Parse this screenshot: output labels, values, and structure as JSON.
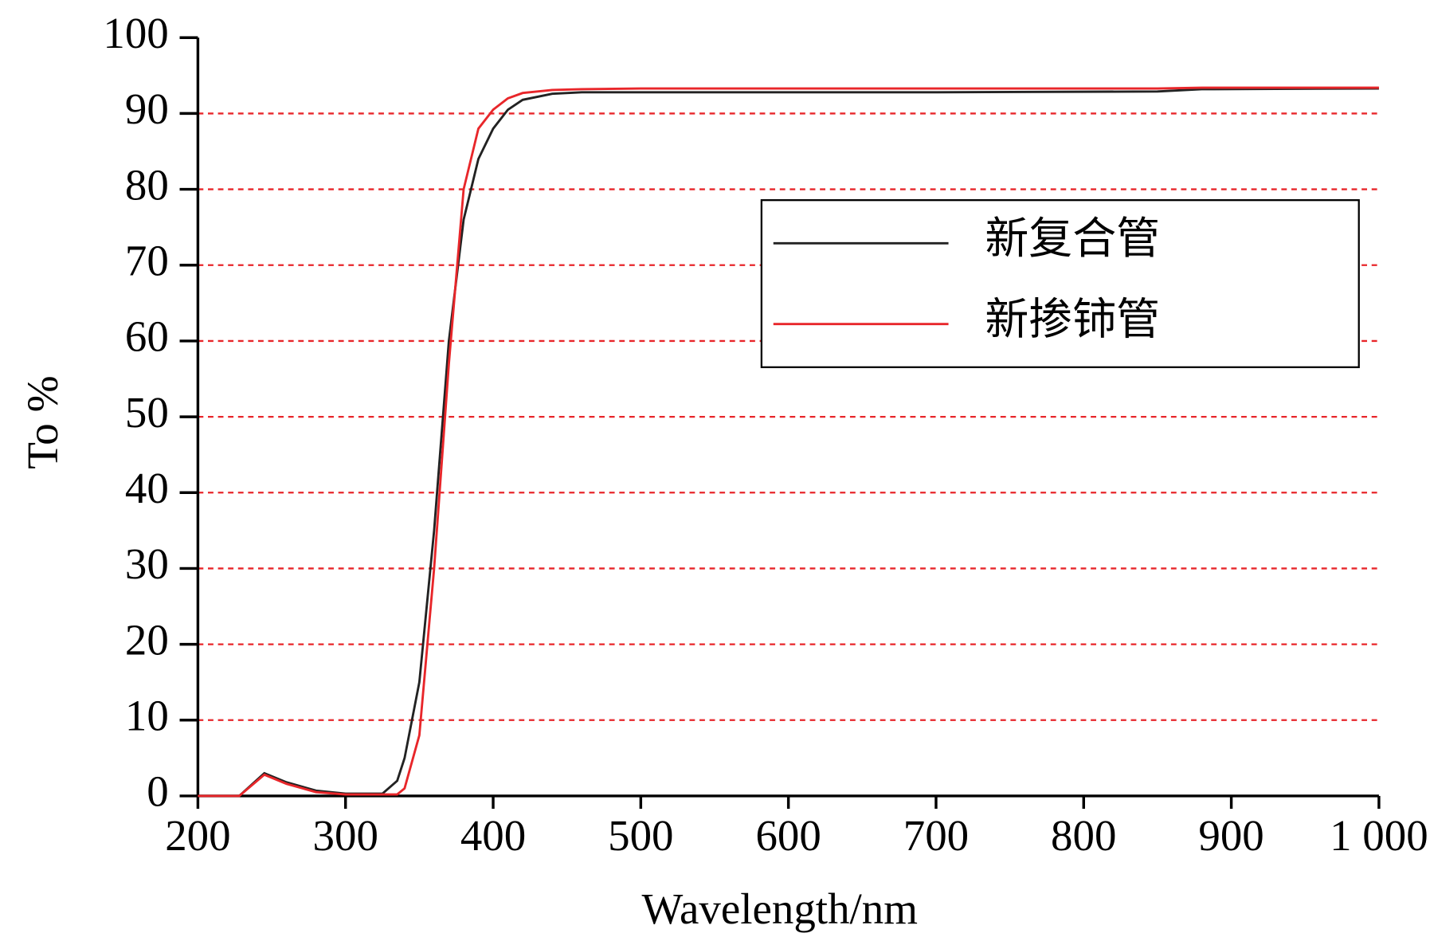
{
  "chart_data": {
    "type": "line",
    "x_label": "Wavelength/nm",
    "y_label": "To %",
    "x": [
      200,
      228,
      245,
      260,
      280,
      300,
      325,
      335,
      340,
      350,
      360,
      370,
      380,
      390,
      400,
      410,
      420,
      440,
      460,
      500,
      700,
      850,
      880,
      1000
    ],
    "series": [
      {
        "name": "新复合管",
        "color": "#222222",
        "values": [
          0,
          0,
          3,
          1.8,
          0.7,
          0.3,
          0.3,
          2,
          5,
          15,
          35,
          60,
          76,
          84,
          88,
          90.5,
          91.8,
          92.6,
          92.8,
          92.8,
          92.8,
          92.9,
          93.2,
          93.3
        ]
      },
      {
        "name": "新掺铈管",
        "color": "#e8262a",
        "values": [
          0,
          0,
          2.8,
          1.6,
          0.5,
          0.2,
          0.2,
          0.2,
          1,
          8,
          30,
          57,
          80,
          88,
          90.5,
          92,
          92.7,
          93.1,
          93.2,
          93.3,
          93.3,
          93.3,
          93.4,
          93.4
        ]
      }
    ],
    "xlim": [
      200,
      1000
    ],
    "ylim": [
      0,
      100
    ],
    "xticks": [
      200,
      300,
      400,
      500,
      600,
      700,
      800,
      900,
      {
        "value": 1000,
        "label": "1 000"
      }
    ],
    "yticks": [
      0,
      10,
      20,
      30,
      40,
      50,
      60,
      70,
      80,
      90,
      100
    ],
    "grid": true,
    "grid_color": "#e8262a",
    "legend": "upper right"
  }
}
